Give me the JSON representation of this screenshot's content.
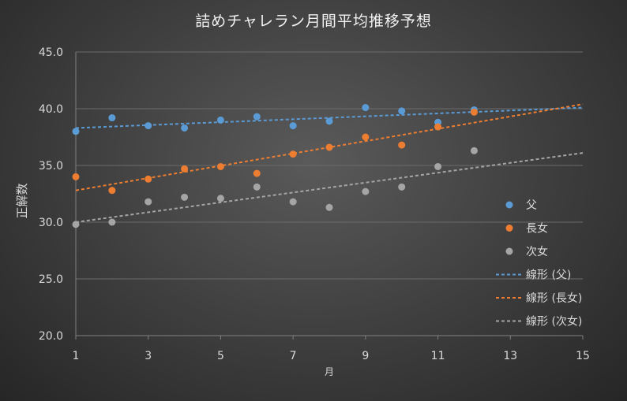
{
  "chart_data": {
    "type": "scatter",
    "title": "詰めチャレラン月間平均推移予想",
    "xlabel": "月",
    "ylabel": "正解数",
    "xlim": [
      1,
      15
    ],
    "ylim": [
      20,
      45
    ],
    "x_ticks": [
      "1",
      "3",
      "5",
      "7",
      "9",
      "11",
      "13",
      "15"
    ],
    "y_ticks": [
      "20.0",
      "25.0",
      "30.0",
      "35.0",
      "40.0",
      "45.0"
    ],
    "x_tick_values": [
      1,
      3,
      5,
      7,
      9,
      11,
      13,
      15
    ],
    "y_tick_values": [
      20,
      25,
      30,
      35,
      40,
      45
    ],
    "grid": "horizontal",
    "legend_position": "right",
    "series": [
      {
        "name": "父",
        "color": "#5b9bd5",
        "x": [
          1,
          2,
          3,
          4,
          5,
          6,
          7,
          8,
          9,
          10,
          11,
          12
        ],
        "y": [
          38.0,
          39.2,
          38.5,
          38.3,
          39.0,
          39.3,
          38.5,
          38.9,
          40.1,
          39.8,
          38.8,
          39.9
        ],
        "trendline": {
          "name": "線形 (父)",
          "start": [
            1,
            38.3
          ],
          "end": [
            15,
            40.1
          ]
        }
      },
      {
        "name": "長女",
        "color": "#ed7d31",
        "x": [
          1,
          2,
          3,
          4,
          5,
          6,
          7,
          8,
          9,
          10,
          11,
          12
        ],
        "y": [
          34.0,
          32.8,
          33.8,
          34.7,
          34.9,
          34.3,
          36.0,
          36.6,
          37.5,
          36.8,
          38.4,
          39.7
        ],
        "trendline": {
          "name": "線形 (長女)",
          "start": [
            1,
            32.8
          ],
          "end": [
            15,
            40.4
          ]
        }
      },
      {
        "name": "次女",
        "color": "#a5a5a5",
        "x": [
          1,
          2,
          3,
          4,
          5,
          6,
          7,
          8,
          9,
          10,
          11,
          12
        ],
        "y": [
          29.8,
          30.0,
          31.8,
          32.2,
          32.1,
          33.1,
          31.8,
          31.3,
          32.7,
          33.1,
          34.9,
          36.3
        ],
        "trendline": {
          "name": "線形 (次女)",
          "start": [
            1,
            30.0
          ],
          "end": [
            15,
            36.1
          ]
        }
      }
    ]
  }
}
